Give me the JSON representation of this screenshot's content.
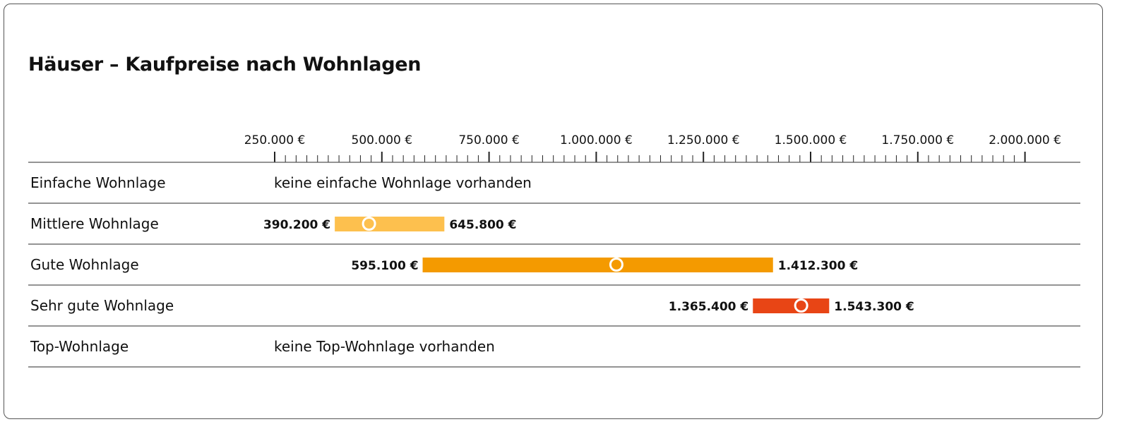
{
  "chart_data": {
    "type": "range-bar",
    "title": "Häuser – Kaufpreise nach Wohnlagen",
    "xlim": [
      250000,
      2000000
    ],
    "major_tick_step": 250000,
    "minor_tick_step": 25000,
    "tick_labels": [
      "250.000 €",
      "500.000 €",
      "750.000 €",
      "1.000.000 €",
      "1.250.000 €",
      "1.500.000 €",
      "1.750.000 €",
      "2.000.000 €"
    ],
    "rows": [
      {
        "label": "Einfache Wohnlage",
        "note": "keine einfache Wohnlage vorhanden"
      },
      {
        "label": "Mittlere Wohnlage",
        "min": 390200,
        "max": 645800,
        "marker": 470000,
        "min_label": "390.200 €",
        "max_label": "645.800 €",
        "color": "#FDC04E"
      },
      {
        "label": "Gute Wohnlage",
        "min": 595100,
        "max": 1412300,
        "marker": 1047000,
        "min_label": "595.100 €",
        "max_label": "1.412.300 €",
        "color": "#F49A00"
      },
      {
        "label": "Sehr gute Wohnlage",
        "min": 1365400,
        "max": 1543300,
        "marker": 1478000,
        "min_label": "1.365.400 €",
        "max_label": "1.543.300 €",
        "color": "#E84515"
      },
      {
        "label": "Top-Wohnlage",
        "note": "keine Top-Wohnlage vorhanden"
      }
    ]
  }
}
